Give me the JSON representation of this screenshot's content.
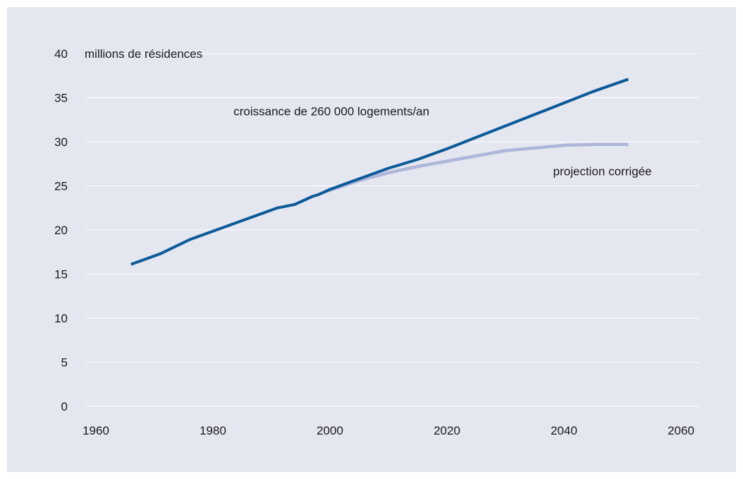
{
  "chart_data": {
    "type": "line",
    "ylabel": "millions de résidences",
    "xlim": [
      1960,
      2060
    ],
    "ylim": [
      0,
      40
    ],
    "xticks": [
      1960,
      1980,
      2000,
      2020,
      2040,
      2060
    ],
    "yticks": [
      0,
      5,
      10,
      15,
      20,
      25,
      30,
      35,
      40
    ],
    "grid": "horizontal",
    "series": [
      {
        "color": "#0b5a98",
        "points": [
          [
            1966,
            16.1
          ],
          [
            1971,
            17.3
          ],
          [
            1976,
            18.9
          ],
          [
            1981,
            20.1
          ],
          [
            1986,
            21.3
          ],
          [
            1991,
            22.5
          ],
          [
            1994,
            22.9
          ],
          [
            1997,
            23.8
          ],
          [
            1998,
            24.0
          ],
          [
            1999,
            24.3
          ],
          [
            2000,
            24.6
          ],
          [
            2005,
            25.8
          ],
          [
            2010,
            27.0
          ],
          [
            2015,
            28.0
          ],
          [
            2020,
            29.2
          ],
          [
            2025,
            30.5
          ],
          [
            2030,
            31.8
          ],
          [
            2035,
            33.1
          ],
          [
            2040,
            34.4
          ],
          [
            2045,
            35.7
          ],
          [
            2051,
            37.1
          ]
        ]
      },
      {
        "color": "#aeb6d9",
        "points": [
          [
            1999,
            24.3
          ],
          [
            2005,
            25.6
          ],
          [
            2010,
            26.5
          ],
          [
            2015,
            27.2
          ],
          [
            2020,
            27.8
          ],
          [
            2025,
            28.4
          ],
          [
            2030,
            29.0
          ],
          [
            2035,
            29.3
          ],
          [
            2040,
            29.6
          ],
          [
            2045,
            29.7
          ],
          [
            2051,
            29.7
          ]
        ]
      }
    ],
    "annotations": [
      {
        "text": "croissance de 260 000 logements/an",
        "x": 2017,
        "y": 33.5
      },
      {
        "text": "projection corrigée",
        "x": 2055,
        "y": 26.7
      }
    ]
  }
}
